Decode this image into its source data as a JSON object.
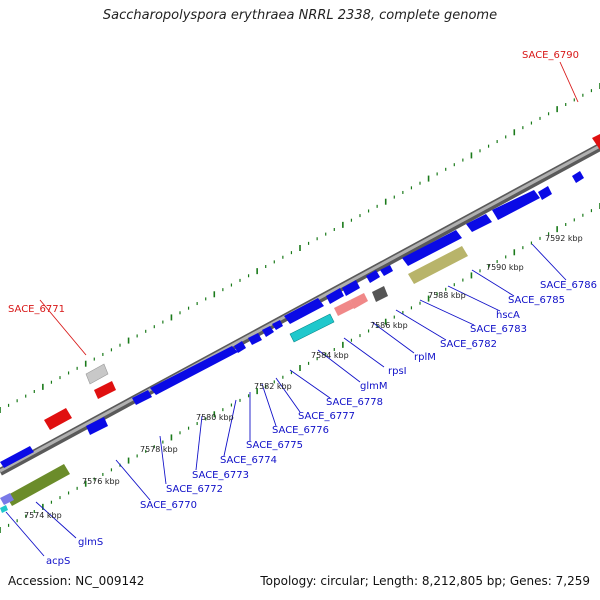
{
  "title": "Saccharopolyspora erythraea NRRL 2338, complete genome",
  "footer": {
    "accession": "Accession: NC_009142",
    "summary": "Topology: circular; Length: 8,212,805 bp; Genes: 7,259"
  },
  "colors": {
    "backbone": "#8a8a8a",
    "forward_gene": "#0a0ae6",
    "reverse_gene": "#0a0ae6",
    "special_gene": "#e01010",
    "rrna": "#b8b46a",
    "trna": "#20c8cc",
    "pseudogene": "#f08888",
    "ncrna": "#6b8c2a",
    "grey_feature": "#555555",
    "tick": "#1a7a1a",
    "gene_label": "#1010c8",
    "special_label": "#d81818"
  },
  "ticks": [
    "7574 kbp",
    "7576 kbp",
    "7578 kbp",
    "7580 kbp",
    "7582 kbp",
    "7584 kbp",
    "7586 kbp",
    "7588 kbp",
    "7590 kbp",
    "7592 kbp"
  ],
  "gene_labels": [
    "acpS",
    "glmS",
    "SACE_6770",
    "SACE_6772",
    "SACE_6773",
    "SACE_6774",
    "SACE_6775",
    "SACE_6776",
    "SACE_6777",
    "SACE_6778",
    "glmM",
    "rpsI",
    "rplM",
    "SACE_6782",
    "SACE_6783",
    "hscA",
    "SACE_6785",
    "SACE_6786"
  ],
  "special_labels": [
    "SACE_6771",
    "SACE_6790"
  ]
}
